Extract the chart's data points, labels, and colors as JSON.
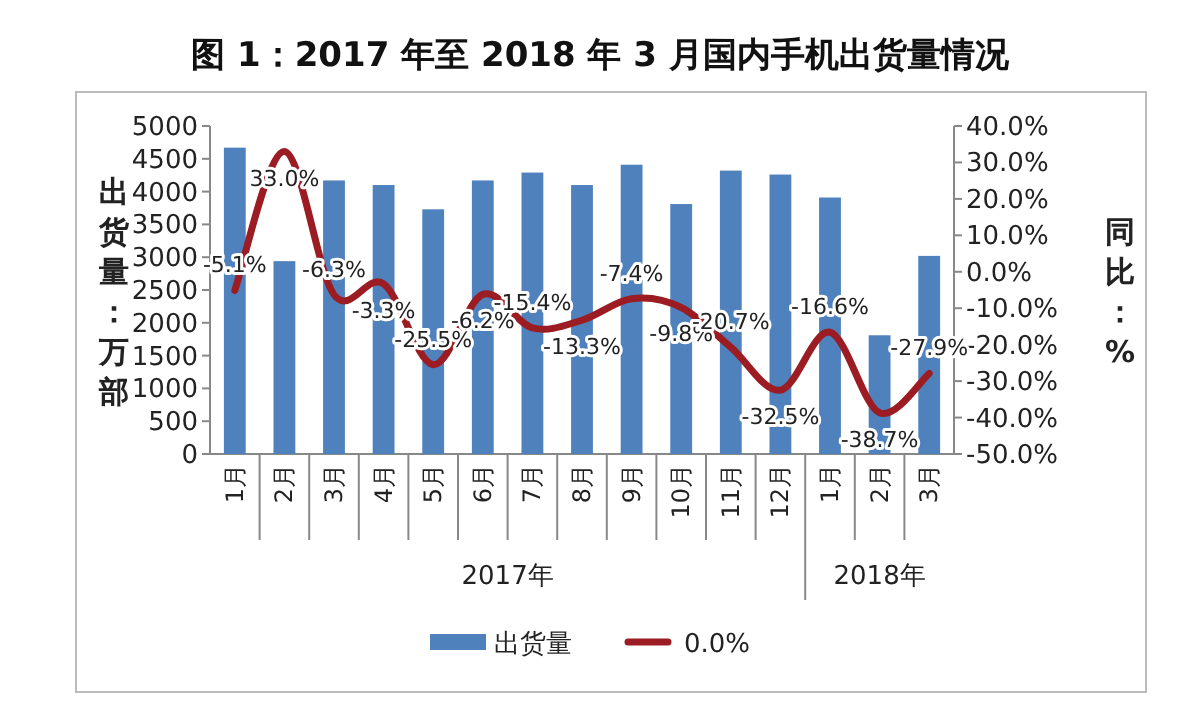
{
  "chart_data": {
    "type": "bar",
    "title": "图 1：2017 年至 2018 年 3 月国内手机出货量情况",
    "ylabel": "出货量：万部",
    "y2label": "同比：%",
    "categories": [
      "1月",
      "2月",
      "3月",
      "4月",
      "5月",
      "6月",
      "7月",
      "8月",
      "9月",
      "10月",
      "11月",
      "12月",
      "1月",
      "2月",
      "3月"
    ],
    "annotations": [
      "2017年",
      "2018年"
    ],
    "series": [
      {
        "name": "出货量",
        "color": "#4f81bd",
        "values": [
          4670,
          2940,
          4170,
          4100,
          3730,
          4170,
          4290,
          4100,
          4410,
          3810,
          4320,
          4260,
          3910,
          1810,
          3020
        ]
      },
      {
        "name": "0.0%",
        "type": "line",
        "axis": "y2",
        "color": "#9b1c22",
        "values": [
          -5.1,
          33.0,
          -6.3,
          -3.3,
          -25.5,
          -6.2,
          -15.4,
          -13.3,
          -7.4,
          -9.8,
          -20.7,
          -32.5,
          -16.6,
          -38.7,
          -27.9
        ],
        "value_labels": [
          "-5.1%",
          "33.0%",
          "-6.3%",
          "-3.3%",
          "-25.5%",
          "-6.2%",
          "-15.4%",
          "-13.3%",
          "-7.4%",
          "-9.8%",
          "-20.7%",
          "-32.5%",
          "-16.6%",
          "-38.7%",
          "-27.9%"
        ]
      }
    ],
    "ylim": [
      0,
      5000
    ],
    "yticks": [
      0,
      500,
      1000,
      1500,
      2000,
      2500,
      3000,
      3500,
      4000,
      4500,
      5000
    ],
    "y2lim": [
      -50,
      40
    ],
    "y2ticks": [
      {
        "value": -50,
        "label": "-50.0%"
      },
      {
        "value": -40,
        "label": "-40.0%"
      },
      {
        "value": -30,
        "label": "-30.0%"
      },
      {
        "value": -20,
        "label": "-20.0%"
      },
      {
        "value": -10,
        "label": "-10.0%"
      },
      {
        "value": 0,
        "label": "0.0%"
      },
      {
        "value": 10,
        "label": "10.0%"
      },
      {
        "value": 20,
        "label": "20.0%"
      },
      {
        "value": 30,
        "label": "30.0%"
      },
      {
        "value": 40,
        "label": "40.0%"
      }
    ],
    "legend": "bottom",
    "grid": false
  }
}
